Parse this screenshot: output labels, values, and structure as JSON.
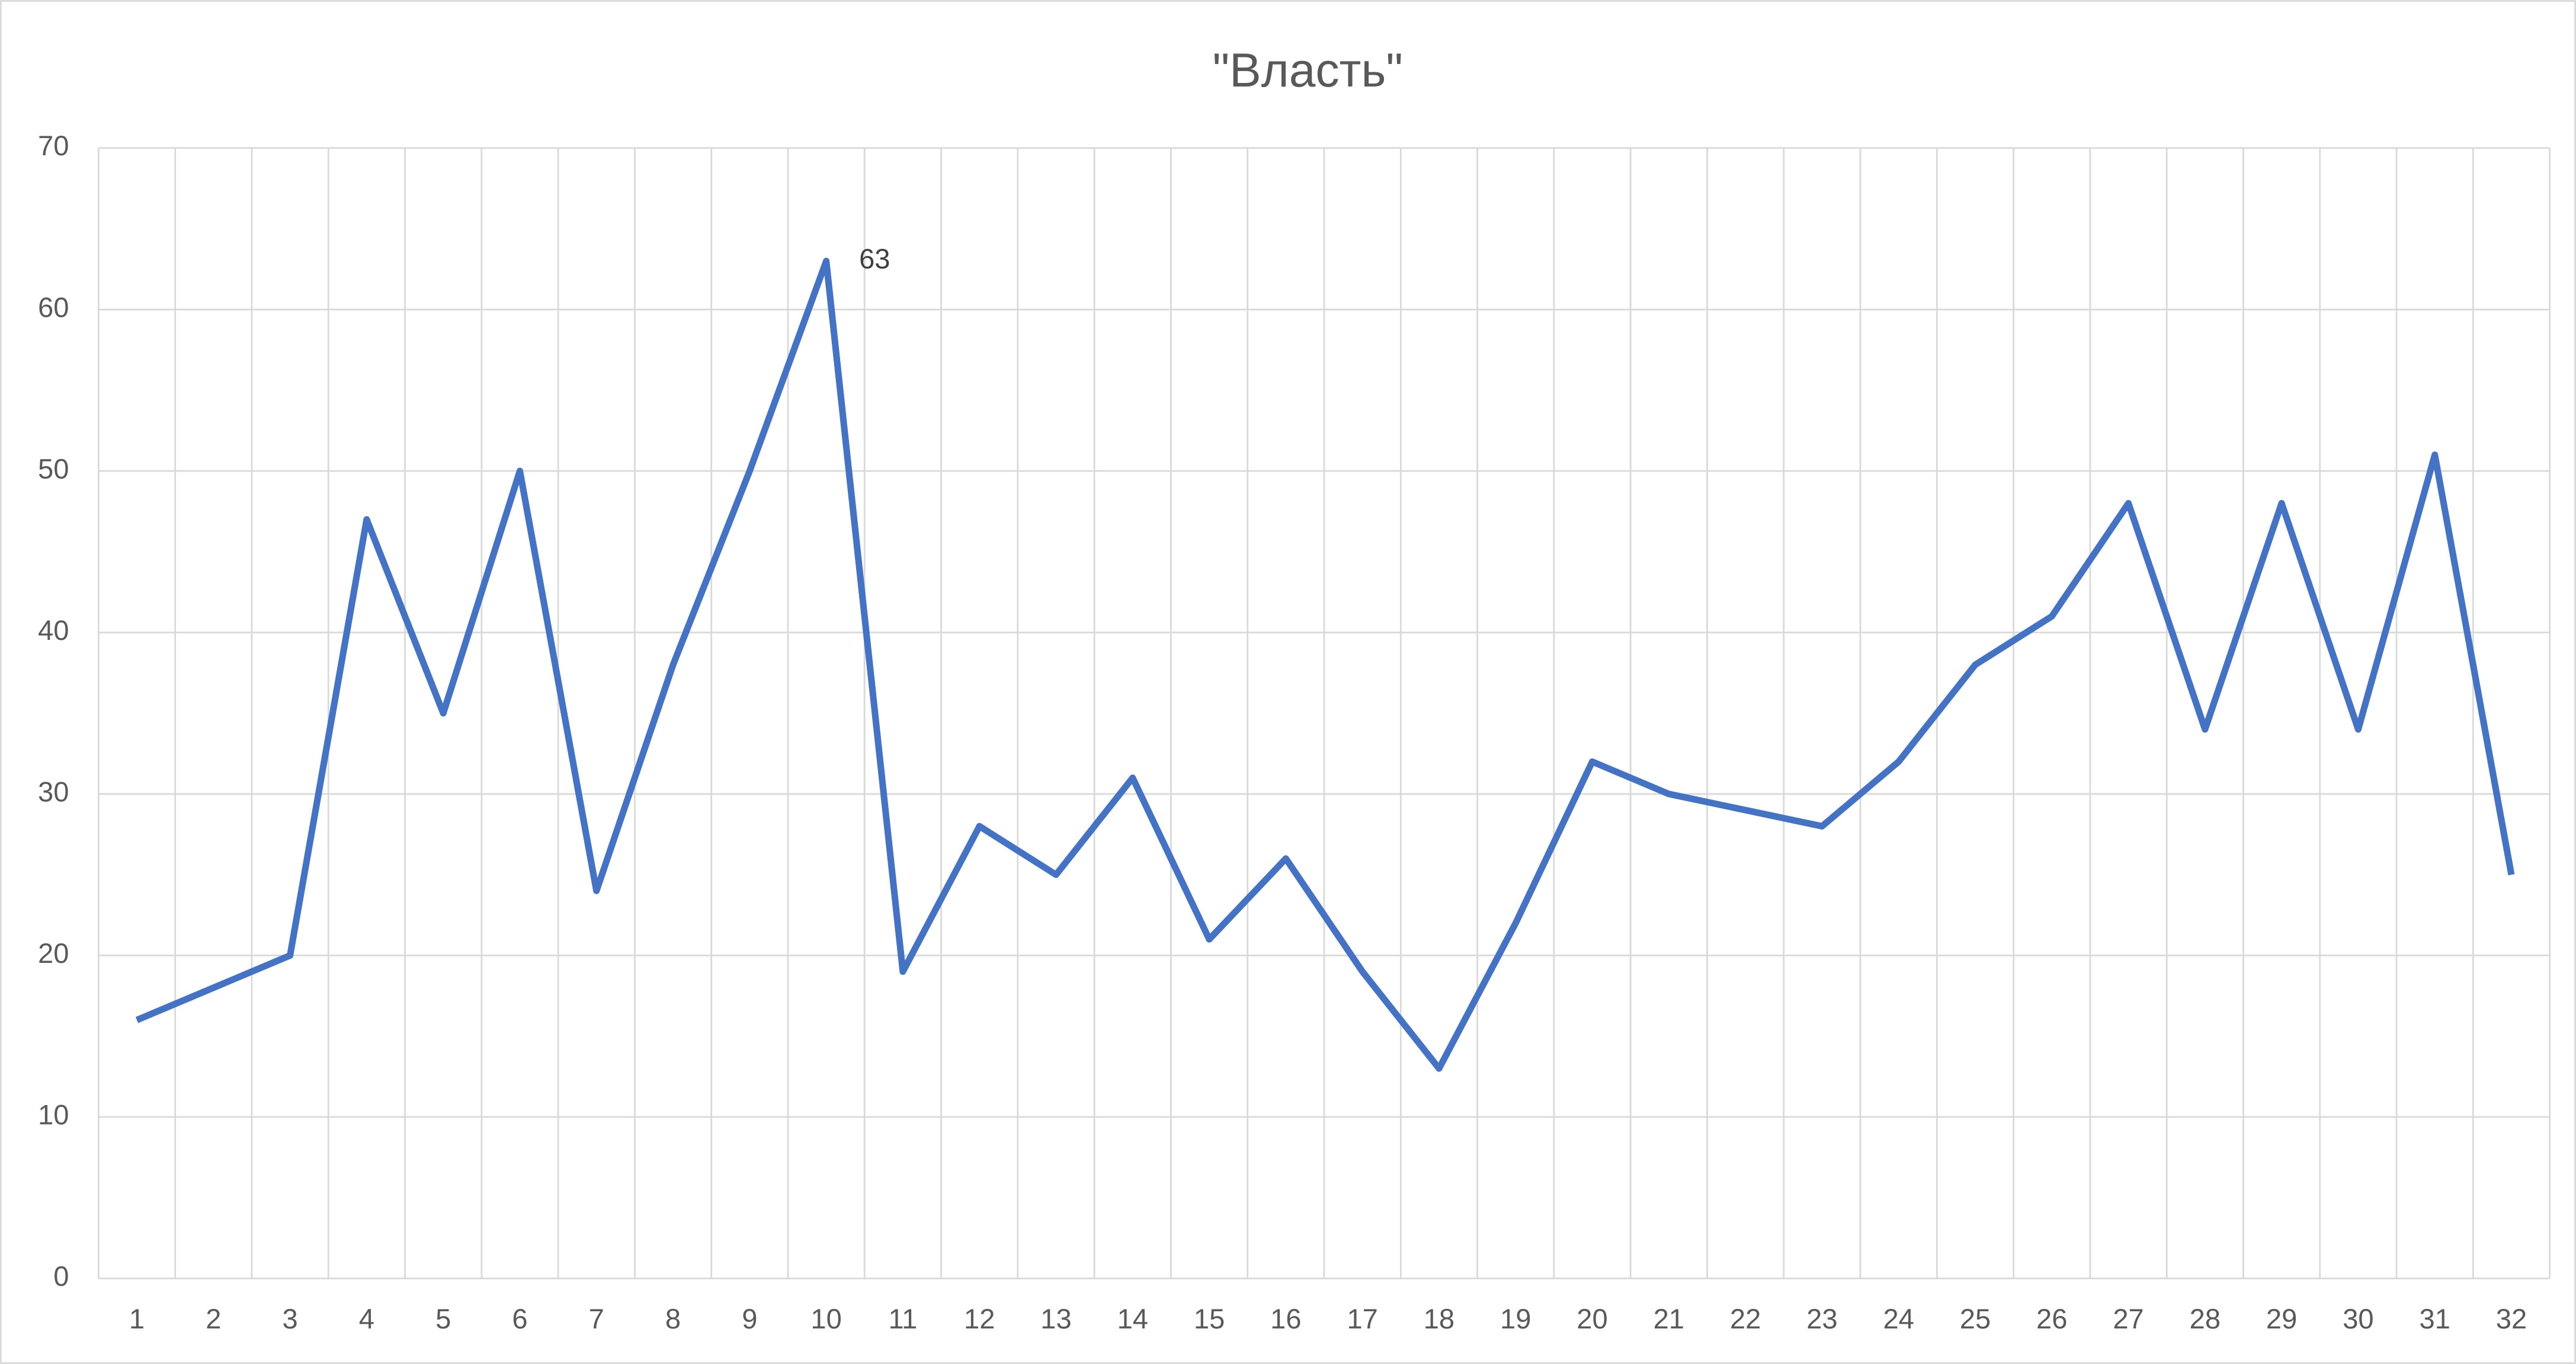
{
  "chart_data": {
    "type": "line",
    "title": "\"Власть\"",
    "categories": [
      "1",
      "2",
      "3",
      "4",
      "5",
      "6",
      "7",
      "8",
      "9",
      "10",
      "11",
      "12",
      "13",
      "14",
      "15",
      "16",
      "17",
      "18",
      "19",
      "20",
      "21",
      "22",
      "23",
      "24",
      "25",
      "26",
      "27",
      "28",
      "29",
      "30",
      "31",
      "32"
    ],
    "series": [
      {
        "name": "Власть",
        "color": "#4472c4",
        "values": [
          16,
          18,
          20,
          47,
          35,
          50,
          24,
          38,
          50,
          63,
          19,
          28,
          25,
          31,
          21,
          26,
          19,
          13,
          22,
          32,
          30,
          29,
          28,
          32,
          38,
          41,
          48,
          34,
          48,
          34,
          51,
          25
        ],
        "value_labels": [
          null,
          null,
          null,
          null,
          null,
          null,
          null,
          null,
          null,
          "63",
          null,
          null,
          null,
          null,
          null,
          null,
          null,
          null,
          null,
          null,
          null,
          null,
          null,
          null,
          null,
          null,
          null,
          null,
          null,
          null,
          null,
          null
        ]
      }
    ],
    "ylim": [
      0,
      70
    ],
    "yticks": [
      0,
      10,
      20,
      30,
      40,
      50,
      60,
      70
    ],
    "grid": true,
    "legend": false
  }
}
